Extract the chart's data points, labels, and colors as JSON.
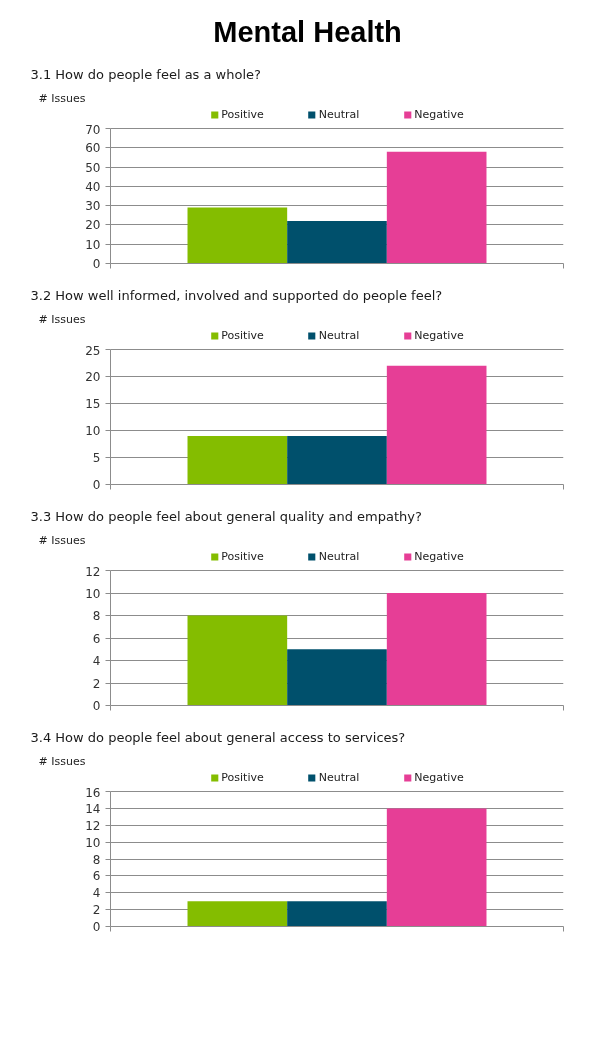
{
  "chart_data": [
    {
      "type": "other",
      "title": "Mental Health"
    },
    {
      "type": "bar",
      "title": "3.1 How do people feel as a whole?",
      "ylabel": "# Issues",
      "categories": [
        null
      ],
      "series": [
        {
          "name": "Positive",
          "color": "#84bd00",
          "values": [
            29
          ]
        },
        {
          "name": "Neutral",
          "color": "#00506c",
          "values": [
            22
          ]
        },
        {
          "name": "Negative",
          "color": "#e63e96",
          "values": [
            58
          ]
        }
      ],
      "ylim": [
        0,
        70
      ],
      "yticks": [
        0,
        10,
        20,
        30,
        40,
        50,
        60,
        70
      ],
      "grid": "y",
      "legend": "top",
      "tick_labels": "y"
    },
    {
      "type": "bar",
      "title": "3.2 How well informed, involved and supported do people feel?",
      "ylabel": "# Issues",
      "categories": [
        null
      ],
      "series": [
        {
          "name": "Positive",
          "color": "#84bd00",
          "values": [
            9
          ]
        },
        {
          "name": "Neutral",
          "color": "#00506c",
          "values": [
            9
          ]
        },
        {
          "name": "Negative",
          "color": "#e63e96",
          "values": [
            22
          ]
        }
      ],
      "ylim": [
        0,
        25
      ],
      "yticks": [
        0,
        5,
        10,
        15,
        20,
        25
      ],
      "grid": "y",
      "legend": "top",
      "tick_labels": "y"
    },
    {
      "type": "bar",
      "title": "3.3 How do people feel about general quality and empathy?",
      "ylabel": "# Issues",
      "categories": [
        null
      ],
      "series": [
        {
          "name": "Positive",
          "color": "#84bd00",
          "values": [
            8
          ]
        },
        {
          "name": "Neutral",
          "color": "#00506c",
          "values": [
            5
          ]
        },
        {
          "name": "Negative",
          "color": "#e63e96",
          "values": [
            10
          ]
        }
      ],
      "ylim": [
        0,
        12
      ],
      "yticks": [
        0,
        2,
        4,
        6,
        8,
        10,
        12
      ],
      "grid": "y",
      "legend": "top",
      "tick_labels": "y"
    },
    {
      "type": "bar",
      "title": "3.4 How do people feel about general access to services?",
      "ylabel": "# Issues",
      "categories": [
        null
      ],
      "series": [
        {
          "name": "Positive",
          "color": "#84bd00",
          "values": [
            3
          ]
        },
        {
          "name": "Neutral",
          "color": "#00506c",
          "values": [
            3
          ]
        },
        {
          "name": "Negative",
          "color": "#e63e96",
          "values": [
            14
          ]
        }
      ],
      "ylim": [
        0,
        16
      ],
      "yticks": [
        0,
        2,
        4,
        6,
        8,
        10,
        12,
        14,
        16
      ],
      "grid": "y",
      "legend": "top",
      "tick_labels": "y"
    }
  ]
}
